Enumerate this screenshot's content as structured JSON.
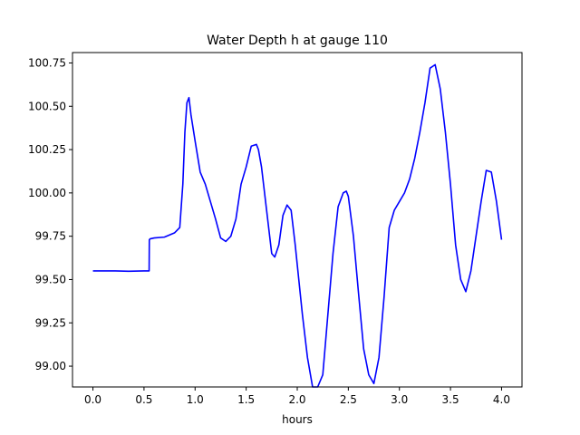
{
  "chart_data": {
    "type": "line",
    "title": "Water Depth h at gauge 110",
    "xlabel": "hours",
    "ylabel": "",
    "xlim": [
      -0.2,
      4.2
    ],
    "ylim": [
      98.88,
      100.81
    ],
    "x_ticks": [
      0.0,
      0.5,
      1.0,
      1.5,
      2.0,
      2.5,
      3.0,
      3.5,
      4.0
    ],
    "x_tick_labels": [
      "0.0",
      "0.5",
      "1.0",
      "1.5",
      "2.0",
      "2.5",
      "3.0",
      "3.5",
      "4.0"
    ],
    "y_ticks": [
      99.0,
      99.25,
      99.5,
      99.75,
      100.0,
      100.25,
      100.5,
      100.75
    ],
    "y_tick_labels": [
      "99.00",
      "99.25",
      "99.50",
      "99.75",
      "100.00",
      "100.25",
      "100.50",
      "100.75"
    ],
    "grid": false,
    "series": [
      {
        "color": "#0000ff",
        "x": [
          0.0,
          0.2,
          0.35,
          0.5,
          0.55,
          0.552,
          0.56,
          0.6,
          0.7,
          0.8,
          0.85,
          0.88,
          0.9,
          0.92,
          0.94,
          0.96,
          1.0,
          1.05,
          1.1,
          1.15,
          1.2,
          1.25,
          1.3,
          1.35,
          1.4,
          1.45,
          1.5,
          1.55,
          1.6,
          1.62,
          1.65,
          1.7,
          1.75,
          1.78,
          1.82,
          1.86,
          1.9,
          1.94,
          1.98,
          2.05,
          2.1,
          2.15,
          2.2,
          2.25,
          2.3,
          2.35,
          2.4,
          2.45,
          2.48,
          2.5,
          2.55,
          2.6,
          2.65,
          2.7,
          2.75,
          2.8,
          2.85,
          2.9,
          2.95,
          3.0,
          3.05,
          3.1,
          3.15,
          3.2,
          3.25,
          3.3,
          3.35,
          3.4,
          3.45,
          3.5,
          3.55,
          3.6,
          3.65,
          3.7,
          3.75,
          3.8,
          3.85,
          3.9,
          3.95,
          4.0
        ],
        "y": [
          99.55,
          99.55,
          99.548,
          99.55,
          99.55,
          99.73,
          99.735,
          99.74,
          99.745,
          99.77,
          99.8,
          100.05,
          100.35,
          100.52,
          100.55,
          100.45,
          100.3,
          100.12,
          100.05,
          99.95,
          99.85,
          99.74,
          99.72,
          99.75,
          99.85,
          100.05,
          100.15,
          100.27,
          100.28,
          100.25,
          100.15,
          99.9,
          99.65,
          99.63,
          99.7,
          99.87,
          99.93,
          99.9,
          99.7,
          99.3,
          99.05,
          98.88,
          98.88,
          98.95,
          99.3,
          99.65,
          99.92,
          100.0,
          100.01,
          99.98,
          99.75,
          99.42,
          99.1,
          98.95,
          98.9,
          99.05,
          99.4,
          99.8,
          99.9,
          99.95,
          100.0,
          100.08,
          100.2,
          100.35,
          100.52,
          100.72,
          100.74,
          100.6,
          100.35,
          100.05,
          99.7,
          99.5,
          99.43,
          99.55,
          99.75,
          99.95,
          100.13,
          100.12,
          99.95,
          99.73
        ]
      }
    ]
  }
}
